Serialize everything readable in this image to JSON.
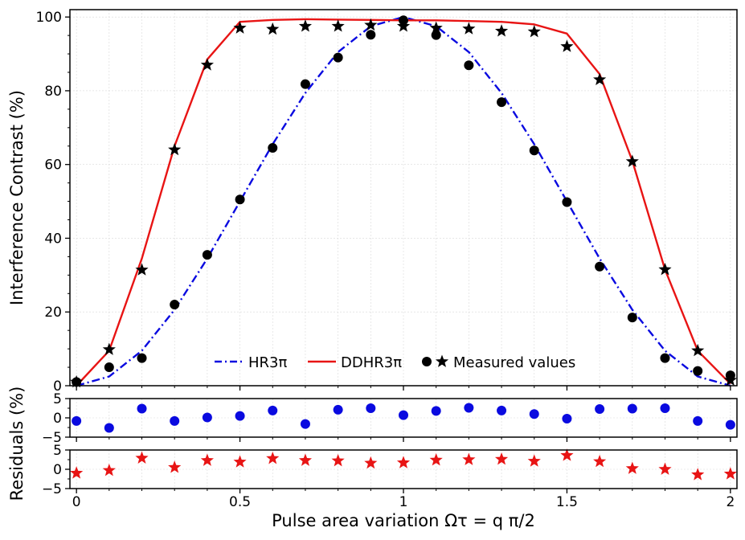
{
  "chart_data": [
    {
      "type": "line",
      "panel": "main",
      "xlabel": "",
      "ylabel": "Interference Contrast (%)",
      "xlim": [
        -0.02,
        2.02
      ],
      "ylim": [
        0,
        102
      ],
      "grid": true,
      "yticks": [
        0,
        20,
        40,
        60,
        80,
        100
      ],
      "ytick_labels": [
        "0",
        "20",
        "40",
        "60",
        "80",
        "100"
      ],
      "legend": {
        "position": "bottom-center",
        "entries": [
          "HR3π",
          "DDHR3π",
          "Measured values"
        ]
      },
      "series": [
        {
          "name": "HR3π",
          "style": "dash-dot line",
          "color": "#0a0ae0",
          "x": [
            0,
            0.1,
            0.2,
            0.3,
            0.4,
            0.5,
            0.6,
            0.7,
            0.8,
            0.9,
            1.0,
            1.1,
            1.2,
            1.3,
            1.4,
            1.5,
            1.6,
            1.7,
            1.8,
            1.9,
            2.0
          ],
          "y": [
            0,
            2.5,
            9.5,
            20.6,
            34.5,
            50,
            65.5,
            79.4,
            90.5,
            97.5,
            100,
            97.5,
            90.5,
            79.4,
            65.5,
            50,
            34.5,
            20.6,
            9.5,
            2.5,
            0
          ]
        },
        {
          "name": "DDHR3π",
          "style": "solid line",
          "color": "#e81414",
          "x": [
            0,
            0.1,
            0.2,
            0.3,
            0.4,
            0.5,
            0.6,
            0.7,
            0.8,
            0.9,
            1.0,
            1.1,
            1.2,
            1.3,
            1.4,
            1.5,
            1.6,
            1.7,
            1.8,
            1.9,
            2.0
          ],
          "y": [
            0,
            9.5,
            34.5,
            65,
            88.5,
            98.7,
            99.2,
            99.4,
            99.3,
            99.2,
            99.1,
            99.1,
            98.9,
            98.7,
            98,
            95.5,
            84.5,
            61,
            31.5,
            9.5,
            0.5
          ]
        },
        {
          "name": "Measured values (circles, HR3π)",
          "style": "circle markers",
          "color": "#000000",
          "x": [
            0,
            0.1,
            0.2,
            0.3,
            0.4,
            0.5,
            0.6,
            0.7,
            0.8,
            0.9,
            1.0,
            1.1,
            1.2,
            1.3,
            1.4,
            1.5,
            1.6,
            1.7,
            1.8,
            1.9,
            2.0
          ],
          "y": [
            1,
            5,
            7.5,
            22,
            35.5,
            50.5,
            64.5,
            81.8,
            89,
            95.2,
            99.1,
            95.1,
            86.9,
            76.9,
            63.8,
            49.8,
            32.3,
            18.5,
            7.5,
            4,
            2.8
          ]
        },
        {
          "name": "Measured values (stars, DDHR3π)",
          "style": "star markers",
          "color": "#000000",
          "x": [
            0,
            0.1,
            0.2,
            0.3,
            0.4,
            0.5,
            0.6,
            0.7,
            0.8,
            0.9,
            1.0,
            1.1,
            1.2,
            1.3,
            1.4,
            1.5,
            1.6,
            1.7,
            1.8,
            1.9,
            2.0
          ],
          "y": [
            1,
            9.8,
            31.4,
            64,
            87,
            97,
            96.7,
            97.5,
            97.5,
            97.8,
            97.5,
            97,
            96.8,
            96.2,
            96,
            92,
            83,
            60.8,
            31.5,
            9.5,
            1.5
          ]
        }
      ]
    },
    {
      "type": "scatter",
      "panel": "residuals-circles",
      "ylabel": "Residuals (%)",
      "xlim": [
        -0.02,
        2.02
      ],
      "ylim": [
        -5,
        5
      ],
      "yticks": [
        -5,
        0,
        5
      ],
      "ytick_labels": [
        "−5",
        "0",
        "5"
      ],
      "series": [
        {
          "name": "Residuals HR3π",
          "marker": "circle",
          "color": "#0a0ae0",
          "x": [
            0,
            0.1,
            0.2,
            0.3,
            0.4,
            0.5,
            0.6,
            0.7,
            0.8,
            0.9,
            1.0,
            1.1,
            1.2,
            1.3,
            1.4,
            1.5,
            1.6,
            1.7,
            1.8,
            1.9,
            2.0
          ],
          "y": [
            -0.8,
            -2.6,
            2.4,
            -0.8,
            0.1,
            0.5,
            1.9,
            -1.6,
            2.1,
            2.5,
            0.7,
            1.8,
            2.6,
            1.9,
            1.0,
            -0.2,
            2.3,
            2.4,
            2.5,
            -0.8,
            -1.8
          ]
        }
      ]
    },
    {
      "type": "scatter",
      "panel": "residuals-stars",
      "ylabel": "",
      "xlabel": "Pulse area variation Ωτ = q π/2",
      "xlim": [
        -0.02,
        2.02
      ],
      "ylim": [
        -5,
        5
      ],
      "yticks": [
        -5,
        0,
        5
      ],
      "ytick_labels": [
        "−5",
        "0",
        "5"
      ],
      "xticks": [
        0,
        0.5,
        1,
        1.5,
        2
      ],
      "xtick_labels": [
        "0",
        "0.5",
        "1",
        "1.5",
        "2"
      ],
      "series": [
        {
          "name": "Residuals DDHR3π",
          "marker": "star",
          "color": "#e81414",
          "x": [
            0,
            0.1,
            0.2,
            0.3,
            0.4,
            0.5,
            0.6,
            0.7,
            0.8,
            0.9,
            1.0,
            1.1,
            1.2,
            1.3,
            1.4,
            1.5,
            1.6,
            1.7,
            1.8,
            1.9,
            2.0
          ],
          "y": [
            -1.0,
            -0.3,
            2.9,
            0.5,
            2.3,
            1.9,
            2.8,
            2.3,
            2.2,
            1.6,
            1.7,
            2.4,
            2.5,
            2.6,
            2.1,
            3.6,
            2.0,
            0.2,
            0.0,
            -1.4,
            -1.2
          ]
        }
      ]
    }
  ]
}
